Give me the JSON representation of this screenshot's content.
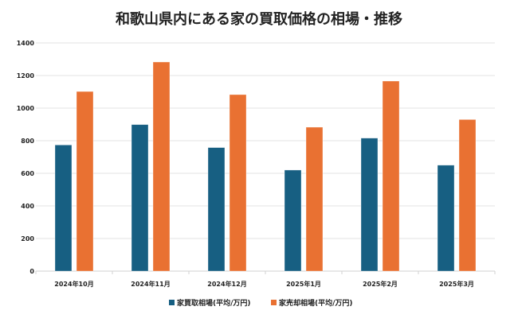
{
  "chart_data": {
    "type": "bar",
    "title": "和歌山県内にある家の買取価格の相場・推移",
    "categories": [
      "2024年10月",
      "2024年11月",
      "2024年12月",
      "2025年1月",
      "2025年2月",
      "2025年3月"
    ],
    "series": [
      {
        "name": "家買取相場(平均/万円)",
        "color": "#175f82",
        "values": [
          774,
          899,
          758,
          620,
          816,
          650
        ]
      },
      {
        "name": "家売却相場(平均/万円)",
        "color": "#e97132",
        "values": [
          1102,
          1283,
          1083,
          883,
          1166,
          930
        ]
      }
    ],
    "ylim": [
      0,
      1400
    ],
    "yticks": [
      "0",
      "200",
      "400",
      "600",
      "800",
      "1000",
      "1200",
      "1400"
    ],
    "grid": true,
    "legend": "bottom"
  }
}
